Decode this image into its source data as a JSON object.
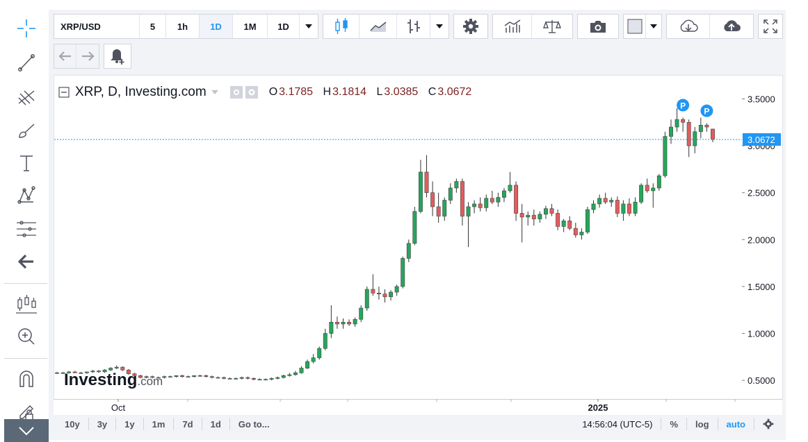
{
  "toolbar": {
    "symbol": "XRP/USD",
    "intervals": [
      "5",
      "1h",
      "1D",
      "1M"
    ],
    "active_interval": "1D",
    "interval_select": "1D",
    "icons": [
      "candles-icon",
      "area-icon",
      "bars-icon",
      "gear-icon",
      "indicators-icon",
      "compare-icon",
      "camera-icon",
      "color-icon",
      "cloud-download-icon",
      "cloud-upload-icon",
      "fullscreen-icon"
    ]
  },
  "sidebar": {
    "tools": [
      "crosshair-icon",
      "trendline-icon",
      "fib-icon",
      "brush-icon",
      "text-icon",
      "pattern-icon",
      "measure-icon",
      "back-arrow-icon",
      "candles-settings-icon",
      "zoom-in-icon",
      "magnet-icon",
      "lock-draw-icon"
    ]
  },
  "legend": {
    "title": "XRP, D, Investing.com",
    "open_label": "O",
    "open": "3.1785",
    "high_label": "H",
    "high": "3.1814",
    "low_label": "L",
    "low": "3.0385",
    "close_label": "C",
    "close": "3.0672"
  },
  "watermark": "Investing.com",
  "bottom": {
    "ranges": [
      "10y",
      "3y",
      "1y",
      "1m",
      "7d",
      "1d"
    ],
    "goto": "Go to...",
    "time": "14:56:04 (UTC-5)",
    "percent": "%",
    "log": "log",
    "auto": "auto"
  },
  "colors": {
    "up": "#26a65b",
    "down": "#e35d5d",
    "accent": "#2196f3",
    "price_line": "#2196f3"
  },
  "chart_data": {
    "type": "candlestick",
    "title": "XRP, D, Investing.com",
    "x_ticks": [
      "Oct",
      "2025"
    ],
    "y_ticks": [
      "3.5000",
      "3.0000",
      "2.5000",
      "2.0000",
      "1.5000",
      "1.0000",
      "0.5000"
    ],
    "ylim": [
      0.3,
      3.8
    ],
    "last_price": "3.0672",
    "markers": [
      "P",
      "P"
    ],
    "candles": [
      [
        0.58,
        0.59,
        0.57,
        0.58
      ],
      [
        0.58,
        0.59,
        0.57,
        0.58
      ],
      [
        0.58,
        0.6,
        0.57,
        0.59
      ],
      [
        0.59,
        0.6,
        0.58,
        0.58
      ],
      [
        0.58,
        0.59,
        0.57,
        0.58
      ],
      [
        0.58,
        0.59,
        0.57,
        0.59
      ],
      [
        0.59,
        0.61,
        0.58,
        0.6
      ],
      [
        0.6,
        0.61,
        0.58,
        0.59
      ],
      [
        0.59,
        0.62,
        0.58,
        0.61
      ],
      [
        0.61,
        0.64,
        0.6,
        0.63
      ],
      [
        0.63,
        0.66,
        0.62,
        0.64
      ],
      [
        0.64,
        0.65,
        0.6,
        0.61
      ],
      [
        0.61,
        0.62,
        0.56,
        0.57
      ],
      [
        0.57,
        0.58,
        0.54,
        0.55
      ],
      [
        0.55,
        0.56,
        0.52,
        0.53
      ],
      [
        0.53,
        0.55,
        0.52,
        0.54
      ],
      [
        0.54,
        0.55,
        0.52,
        0.53
      ],
      [
        0.53,
        0.54,
        0.52,
        0.53
      ],
      [
        0.53,
        0.55,
        0.52,
        0.54
      ],
      [
        0.54,
        0.55,
        0.53,
        0.54
      ],
      [
        0.54,
        0.55,
        0.53,
        0.55
      ],
      [
        0.55,
        0.56,
        0.53,
        0.54
      ],
      [
        0.54,
        0.55,
        0.53,
        0.54
      ],
      [
        0.54,
        0.55,
        0.53,
        0.55
      ],
      [
        0.55,
        0.56,
        0.54,
        0.55
      ],
      [
        0.55,
        0.56,
        0.53,
        0.54
      ],
      [
        0.54,
        0.55,
        0.52,
        0.53
      ],
      [
        0.53,
        0.54,
        0.52,
        0.53
      ],
      [
        0.53,
        0.54,
        0.51,
        0.52
      ],
      [
        0.52,
        0.53,
        0.51,
        0.52
      ],
      [
        0.52,
        0.53,
        0.51,
        0.52
      ],
      [
        0.52,
        0.54,
        0.51,
        0.53
      ],
      [
        0.53,
        0.54,
        0.51,
        0.52
      ],
      [
        0.52,
        0.53,
        0.5,
        0.51
      ],
      [
        0.51,
        0.52,
        0.5,
        0.51
      ],
      [
        0.51,
        0.52,
        0.5,
        0.51
      ],
      [
        0.51,
        0.53,
        0.5,
        0.52
      ],
      [
        0.52,
        0.54,
        0.51,
        0.53
      ],
      [
        0.53,
        0.56,
        0.52,
        0.55
      ],
      [
        0.55,
        0.58,
        0.54,
        0.56
      ],
      [
        0.56,
        0.6,
        0.55,
        0.58
      ],
      [
        0.58,
        0.65,
        0.57,
        0.63
      ],
      [
        0.63,
        0.72,
        0.62,
        0.7
      ],
      [
        0.7,
        0.78,
        0.68,
        0.74
      ],
      [
        0.74,
        0.86,
        0.72,
        0.84
      ],
      [
        0.84,
        1.05,
        0.82,
        1.0
      ],
      [
        1.0,
        1.3,
        0.95,
        1.12
      ],
      [
        1.12,
        1.18,
        1.05,
        1.1
      ],
      [
        1.1,
        1.16,
        1.05,
        1.12
      ],
      [
        1.12,
        1.15,
        1.08,
        1.1
      ],
      [
        1.1,
        1.17,
        1.07,
        1.15
      ],
      [
        1.15,
        1.3,
        1.12,
        1.27
      ],
      [
        1.27,
        1.5,
        1.24,
        1.47
      ],
      [
        1.47,
        1.63,
        1.4,
        1.43
      ],
      [
        1.43,
        1.5,
        1.36,
        1.42
      ],
      [
        1.42,
        1.47,
        1.33,
        1.39
      ],
      [
        1.39,
        1.46,
        1.35,
        1.44
      ],
      [
        1.44,
        1.52,
        1.4,
        1.5
      ],
      [
        1.5,
        1.82,
        1.48,
        1.8
      ],
      [
        1.8,
        2.0,
        1.76,
        1.96
      ],
      [
        1.96,
        2.35,
        1.94,
        2.3
      ],
      [
        2.3,
        2.85,
        2.28,
        2.72
      ],
      [
        2.72,
        2.9,
        2.45,
        2.5
      ],
      [
        2.5,
        2.62,
        2.25,
        2.35
      ],
      [
        2.35,
        2.5,
        2.18,
        2.25
      ],
      [
        2.25,
        2.45,
        2.2,
        2.42
      ],
      [
        2.42,
        2.6,
        2.38,
        2.55
      ],
      [
        2.55,
        2.65,
        2.5,
        2.62
      ],
      [
        2.62,
        2.65,
        2.15,
        2.25
      ],
      [
        2.25,
        2.4,
        1.92,
        2.35
      ],
      [
        2.35,
        2.42,
        2.28,
        2.38
      ],
      [
        2.38,
        2.45,
        2.3,
        2.34
      ],
      [
        2.34,
        2.48,
        2.3,
        2.44
      ],
      [
        2.44,
        2.52,
        2.38,
        2.4
      ],
      [
        2.4,
        2.5,
        2.35,
        2.45
      ],
      [
        2.45,
        2.55,
        2.4,
        2.52
      ],
      [
        2.52,
        2.72,
        2.5,
        2.58
      ],
      [
        2.58,
        2.62,
        2.2,
        2.28
      ],
      [
        2.28,
        2.38,
        1.97,
        2.24
      ],
      [
        2.24,
        2.3,
        2.15,
        2.26
      ],
      [
        2.26,
        2.32,
        2.15,
        2.22
      ],
      [
        2.22,
        2.3,
        2.18,
        2.27
      ],
      [
        2.27,
        2.36,
        2.22,
        2.33
      ],
      [
        2.33,
        2.38,
        2.25,
        2.28
      ],
      [
        2.28,
        2.32,
        2.1,
        2.14
      ],
      [
        2.14,
        2.22,
        2.08,
        2.2
      ],
      [
        2.2,
        2.25,
        2.1,
        2.12
      ],
      [
        2.12,
        2.18,
        2.02,
        2.05
      ],
      [
        2.05,
        2.12,
        2.0,
        2.08
      ],
      [
        2.08,
        2.35,
        2.06,
        2.32
      ],
      [
        2.32,
        2.42,
        2.28,
        2.38
      ],
      [
        2.38,
        2.48,
        2.34,
        2.44
      ],
      [
        2.44,
        2.5,
        2.38,
        2.4
      ],
      [
        2.4,
        2.45,
        2.35,
        2.42
      ],
      [
        2.42,
        2.46,
        2.24,
        2.28
      ],
      [
        2.28,
        2.42,
        2.2,
        2.38
      ],
      [
        2.38,
        2.44,
        2.25,
        2.28
      ],
      [
        2.28,
        2.45,
        2.25,
        2.4
      ],
      [
        2.4,
        2.6,
        2.38,
        2.58
      ],
      [
        2.58,
        2.65,
        2.5,
        2.52
      ],
      [
        2.52,
        2.6,
        2.34,
        2.55
      ],
      [
        2.55,
        2.7,
        2.52,
        2.68
      ],
      [
        2.68,
        3.15,
        2.66,
        3.1
      ],
      [
        3.1,
        3.28,
        3.02,
        3.2
      ],
      [
        3.2,
        3.4,
        3.15,
        3.28
      ],
      [
        3.28,
        3.3,
        3.15,
        3.25
      ],
      [
        3.25,
        3.28,
        2.88,
        3.0
      ],
      [
        3.0,
        3.2,
        2.92,
        3.15
      ],
      [
        3.15,
        3.3,
        3.08,
        3.22
      ],
      [
        3.22,
        3.24,
        3.15,
        3.2
      ],
      [
        3.1785,
        3.1814,
        3.0385,
        3.0672
      ]
    ]
  }
}
